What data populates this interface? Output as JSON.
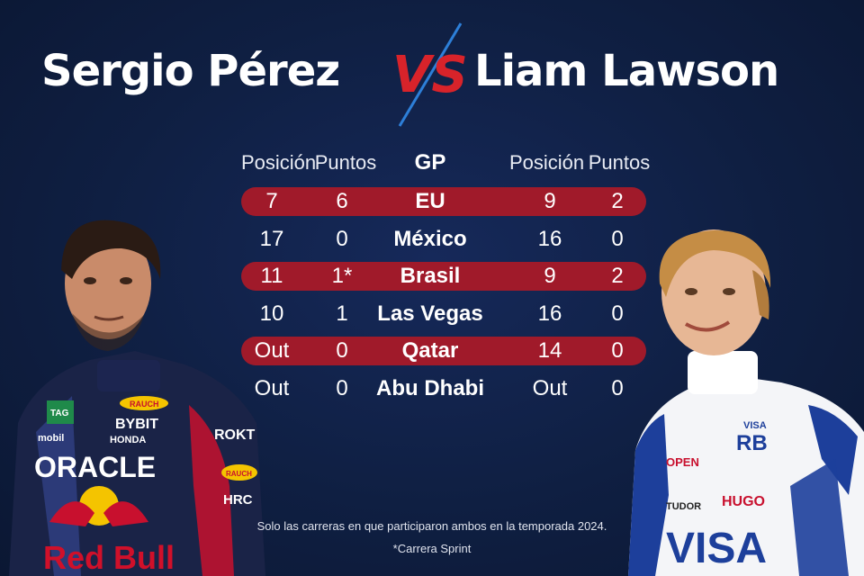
{
  "title": {
    "left_name": "Sergio Pérez",
    "vs": "VS",
    "right_name": "Liam Lawson"
  },
  "table": {
    "headers": [
      "Posición",
      "Puntos",
      "GP",
      "Posición",
      "Puntos"
    ],
    "rows": [
      {
        "p1_pos": "7",
        "p1_pts": "6",
        "gp": "EU",
        "p2_pos": "9",
        "p2_pts": "2",
        "highlight": true
      },
      {
        "p1_pos": "17",
        "p1_pts": "0",
        "gp": "México",
        "p2_pos": "16",
        "p2_pts": "0",
        "highlight": false
      },
      {
        "p1_pos": "11",
        "p1_pts": "1*",
        "gp": "Brasil",
        "p2_pos": "9",
        "p2_pts": "2",
        "highlight": true
      },
      {
        "p1_pos": "10",
        "p1_pts": "1",
        "gp": "Las Vegas",
        "p2_pos": "16",
        "p2_pts": "0",
        "highlight": false
      },
      {
        "p1_pos": "Out",
        "p1_pts": "0",
        "gp": "Qatar",
        "p2_pos": "14",
        "p2_pts": "0",
        "highlight": true
      },
      {
        "p1_pos": "Out",
        "p1_pts": "0",
        "gp": "Abu Dhabi",
        "p2_pos": "Out",
        "p2_pts": "0",
        "highlight": false
      }
    ]
  },
  "footnote": {
    "line1": "Solo las carreras en que participaron ambos en la temporada 2024.",
    "line2": "*Carrera Sprint"
  },
  "left_player": {
    "suit_text": [
      "ORACLE",
      "Red Bull",
      "BYBIT",
      "HONDA",
      "RAUCH",
      "TAG",
      "ROKT",
      "HRC",
      "mobil"
    ]
  },
  "right_player": {
    "suit_text": [
      "VISA",
      "HUGO",
      "OPEN",
      "TUDOR",
      "RB",
      "VISA"
    ]
  },
  "colors": {
    "background": "#0f1f42",
    "highlight_row": "#a01a2a",
    "vs_red": "#d8232a",
    "vs_blue": "#2d7fd8"
  }
}
